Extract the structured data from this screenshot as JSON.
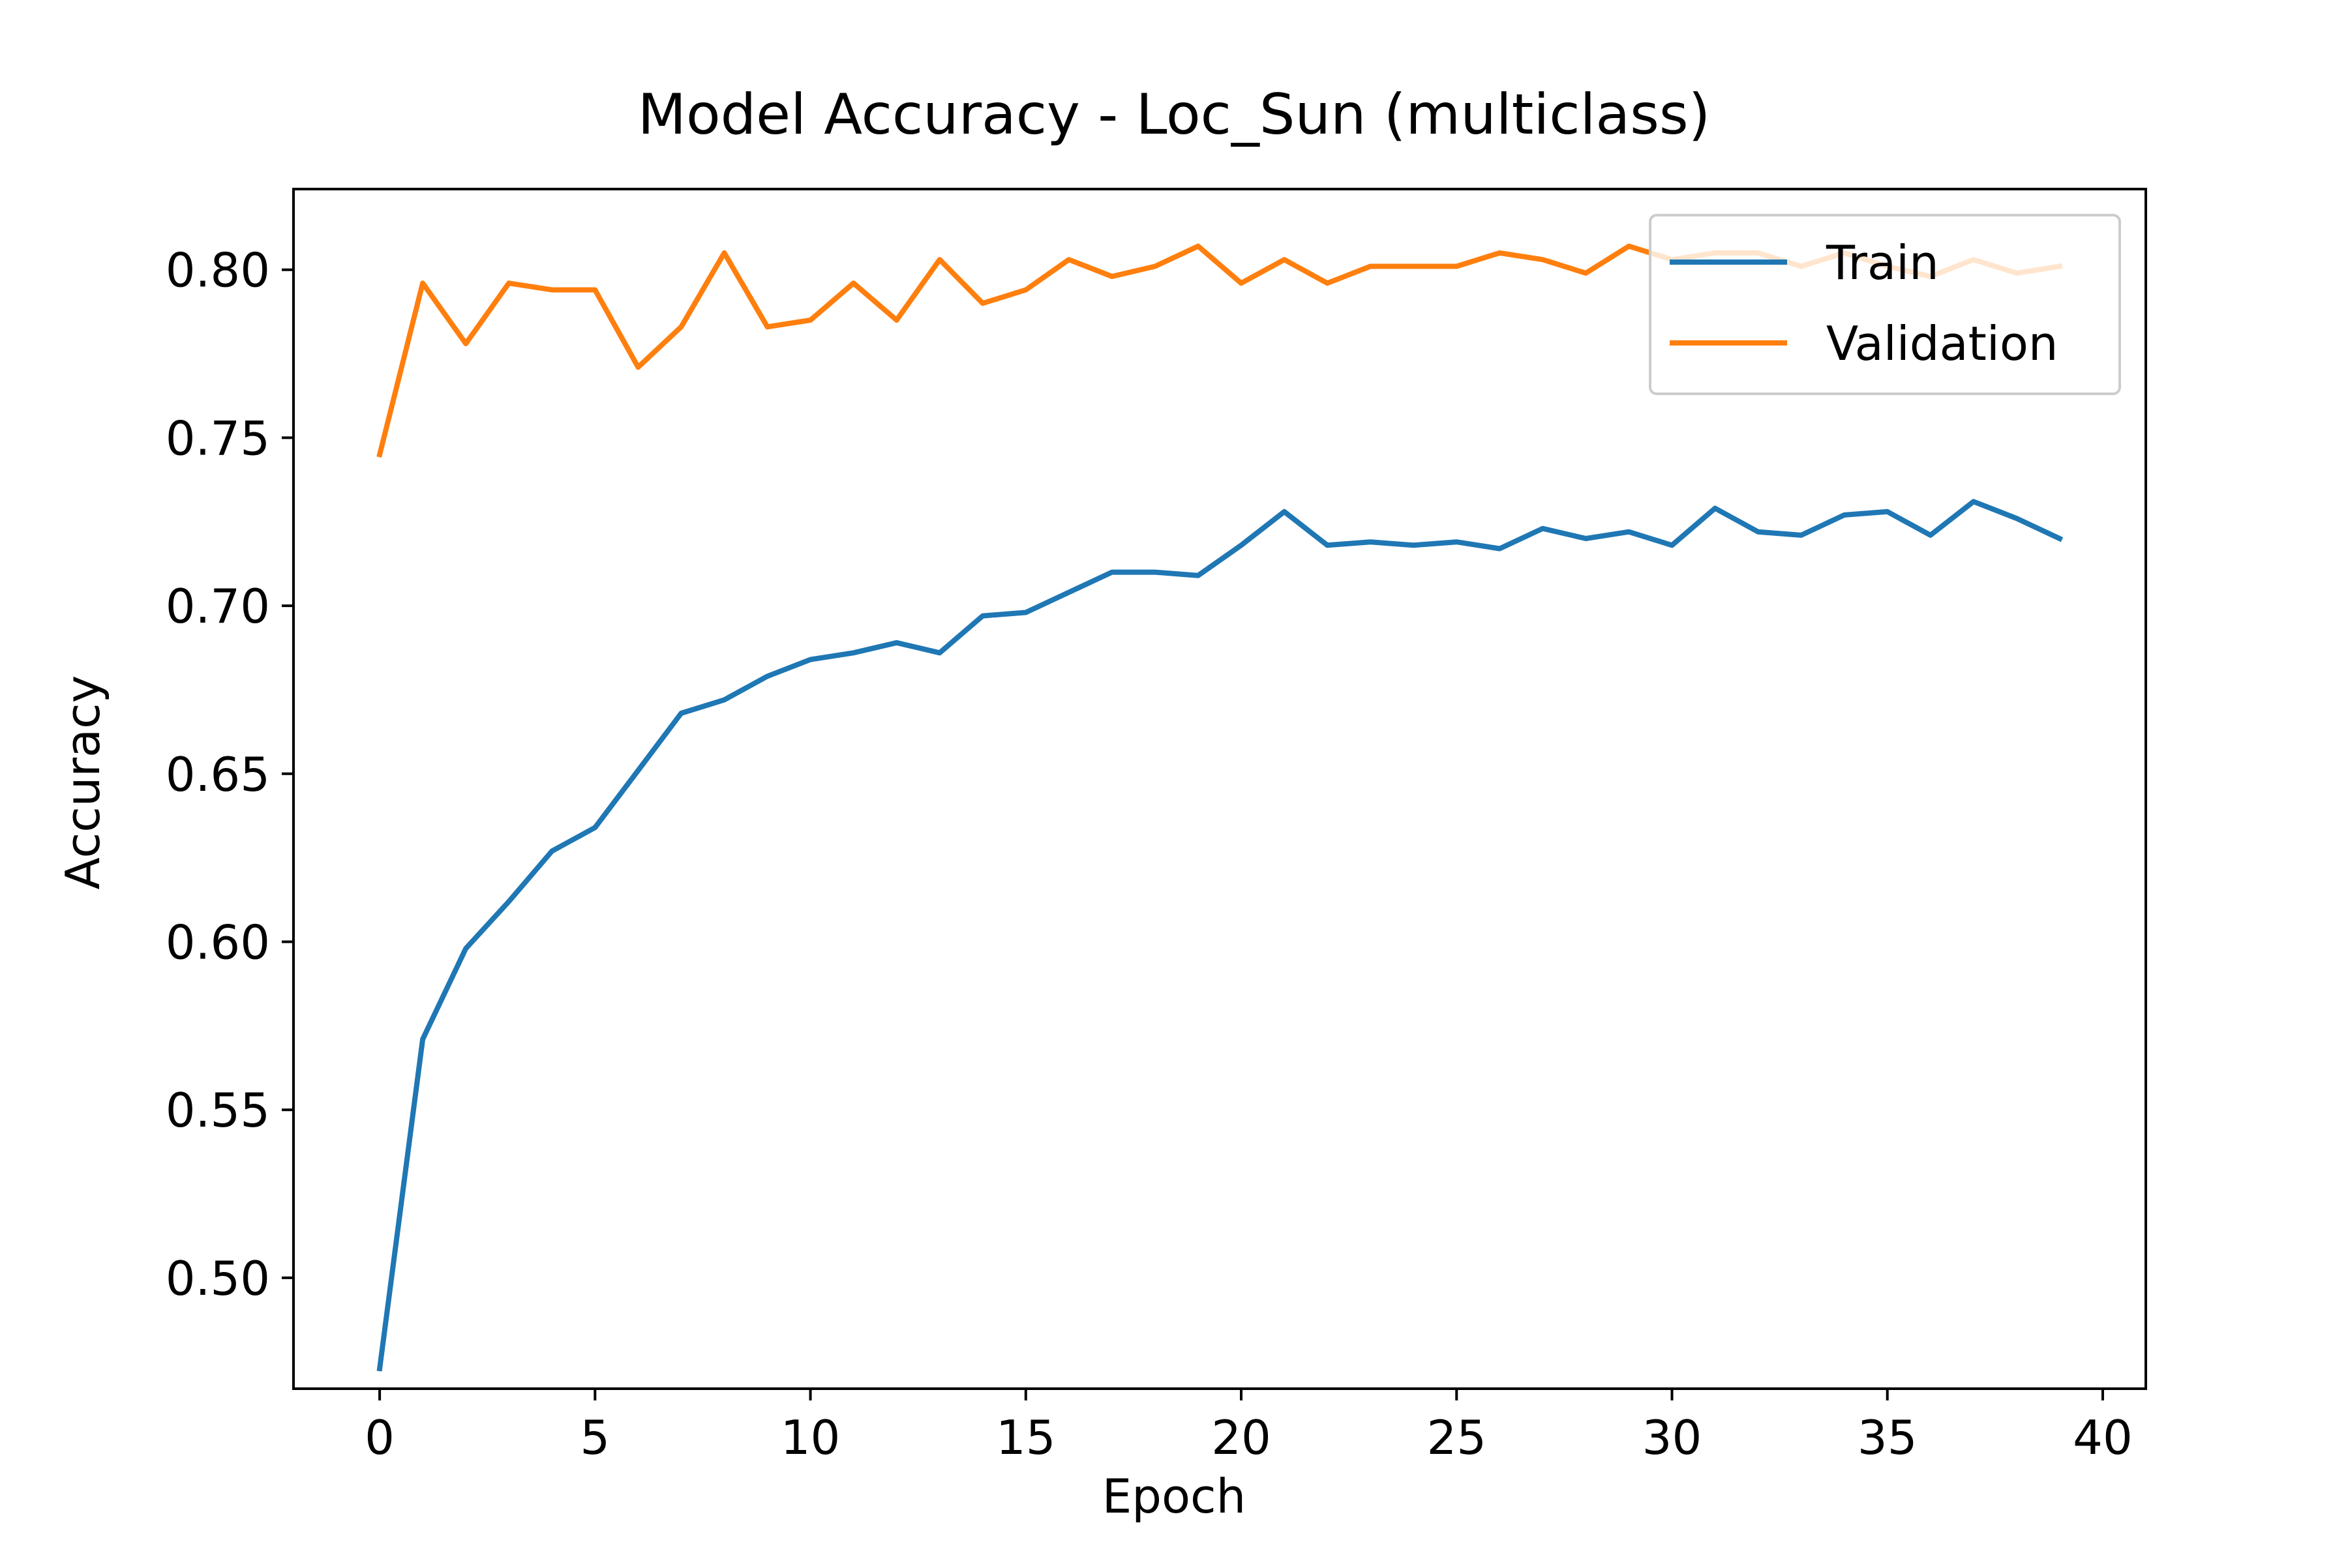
{
  "chart_data": {
    "type": "line",
    "title": "Model Accuracy - Loc_Sun (multiclass)",
    "xlabel": "Epoch",
    "ylabel": "Accuracy",
    "xlim": [
      -2,
      41
    ],
    "ylim": [
      0.467,
      0.824
    ],
    "xticks": [
      0,
      5,
      10,
      15,
      20,
      25,
      30,
      35,
      40
    ],
    "yticks": [
      0.5,
      0.55,
      0.6,
      0.65,
      0.7,
      0.75,
      0.8
    ],
    "grid": false,
    "legend_position": "upper right",
    "x": [
      0,
      1,
      2,
      3,
      4,
      5,
      6,
      7,
      8,
      9,
      10,
      11,
      12,
      13,
      14,
      15,
      16,
      17,
      18,
      19,
      20,
      21,
      22,
      23,
      24,
      25,
      26,
      27,
      28,
      29,
      30,
      31,
      32,
      33,
      34,
      35,
      36,
      37,
      38,
      39
    ],
    "series": [
      {
        "name": "Train",
        "color": "#1f77b4",
        "values": [
          0.473,
          0.571,
          0.598,
          0.612,
          0.627,
          0.634,
          0.651,
          0.668,
          0.672,
          0.679,
          0.684,
          0.686,
          0.689,
          0.686,
          0.697,
          0.698,
          0.704,
          0.71,
          0.71,
          0.709,
          0.718,
          0.728,
          0.718,
          0.719,
          0.718,
          0.719,
          0.717,
          0.723,
          0.72,
          0.722,
          0.718,
          0.729,
          0.722,
          0.721,
          0.727,
          0.728,
          0.721,
          0.731,
          0.726,
          0.72
        ]
      },
      {
        "name": "Validation",
        "color": "#ff7f0e",
        "values": [
          0.745,
          0.796,
          0.778,
          0.796,
          0.794,
          0.794,
          0.771,
          0.783,
          0.805,
          0.783,
          0.785,
          0.796,
          0.785,
          0.803,
          0.79,
          0.794,
          0.803,
          0.798,
          0.801,
          0.807,
          0.796,
          0.803,
          0.796,
          0.801,
          0.801,
          0.801,
          0.805,
          0.803,
          0.799,
          0.807,
          0.803,
          0.805,
          0.805,
          0.801,
          0.805,
          0.801,
          0.798,
          0.803,
          0.799,
          0.801
        ]
      }
    ]
  }
}
